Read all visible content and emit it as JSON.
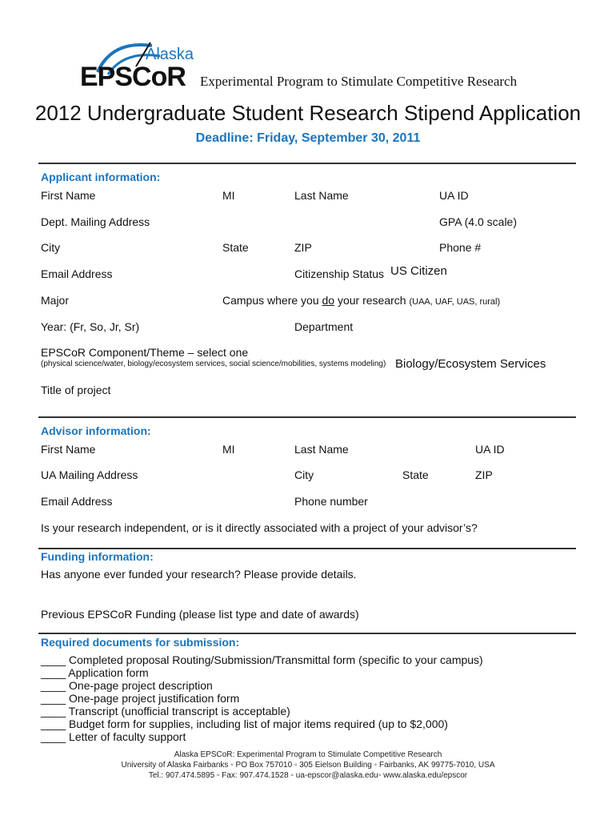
{
  "header": {
    "logo_text": "EPSCoR",
    "logo_script": "Alaska",
    "tagline": "Experimental Program to Stimulate Competitive Research",
    "title": "2012 Undergraduate Student Research Stipend Application",
    "deadline": "Deadline: Friday, September 30, 2011",
    "accent_color": "#1b75bc"
  },
  "applicant": {
    "heading": "Applicant information:",
    "first_name": "First Name",
    "mi": "MI",
    "last_name": "Last Name",
    "ua_id": "UA ID",
    "mailing": "Dept. Mailing Address",
    "gpa": "GPA (4.0 scale)",
    "city": "City",
    "state": "State",
    "zip": "ZIP",
    "phone": "Phone #",
    "email": "Email Address",
    "citizenship": "Citizenship Status",
    "citizenship_value": "US Citizen",
    "major": "Major",
    "campus_pre": "Campus where you ",
    "campus_do": "do",
    "campus_post": " your research",
    "campus_hint": "(UAA, UAF, UAS, rural)",
    "year": "Year: (Fr, So, Jr, Sr)",
    "department": "Department",
    "component": "EPSCoR Component/Theme – select one",
    "component_hint": "(physical science/water, biology/ecosystem services, social science/mobilities, systems modeling)",
    "component_value": "Biology/Ecosystem Services",
    "project_title": "Title of project"
  },
  "advisor": {
    "heading": "Advisor information:",
    "first_name": "First Name",
    "mi": "MI",
    "last_name": "Last Name",
    "ua_id": "UA ID",
    "mailing": "UA Mailing Address",
    "city": "City",
    "state": "State",
    "zip": "ZIP",
    "email": "Email Address",
    "phone": "Phone number",
    "question": "Is your research independent, or is it directly associated with a project of your advisor’s?"
  },
  "funding": {
    "heading": "Funding information:",
    "q1": "Has anyone ever funded your research? Please provide details.",
    "q2": "Previous EPSCoR Funding (please list type and date of awards)"
  },
  "documents": {
    "heading": "Required documents for submission:",
    "items": [
      "____ Completed proposal Routing/Submission/Transmittal form (specific to your campus)",
      "____ Application form",
      "____ One-page project description",
      "____ One-page project justification form",
      "____ Transcript (unofficial transcript is acceptable)",
      "____ Budget form for supplies, including list of major items required (up to $2,000)",
      "____ Letter of faculty support"
    ]
  },
  "footer": {
    "line1": "Alaska EPSCoR: Experimental Program to Stimulate Competitive Research",
    "line2": "University of Alaska Fairbanks ◦ PO Box 757010 ◦ 305 Eielson Building ◦ Fairbanks, AK 99775-7010, USA",
    "line3": "Tel.: 907.474.5895 ◦ Fax: 907.474.1528 ◦ ua-epscor@alaska.edu◦ www.alaska.edu/epscor"
  }
}
